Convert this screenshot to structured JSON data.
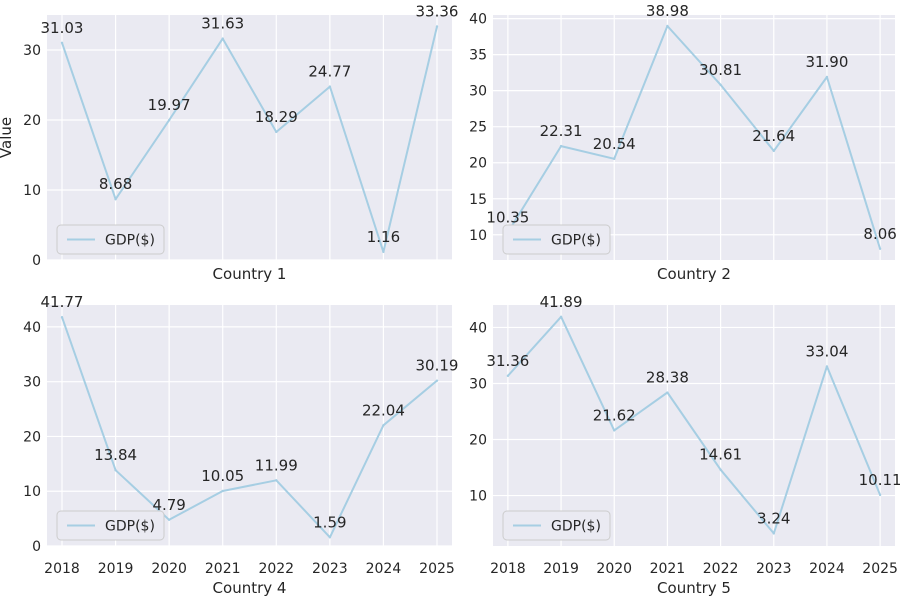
{
  "chart_data": [
    {
      "type": "line",
      "xlabel": "Country 1",
      "ylabel": "Value",
      "x": [
        2018,
        2019,
        2020,
        2021,
        2022,
        2023,
        2024,
        2025
      ],
      "show_xticklabels": false,
      "ylim": [
        0,
        35
      ],
      "yticks": [
        0,
        10,
        20,
        30
      ],
      "grid": true,
      "legend": "lower-left",
      "series": [
        {
          "name": "GDP($)",
          "values": [
            31.03,
            8.68,
            19.97,
            31.63,
            18.29,
            24.77,
            1.16,
            33.36
          ],
          "labels": [
            "31.03",
            "8.68",
            "19.97",
            "31.63",
            "18.29",
            "24.77",
            "1.16",
            "33.36"
          ],
          "color": "#a6cee3"
        }
      ]
    },
    {
      "type": "line",
      "xlabel": "Country 2",
      "ylabel": "",
      "x": [
        2018,
        2019,
        2020,
        2021,
        2022,
        2023,
        2024,
        2025
      ],
      "show_xticklabels": false,
      "ylim": [
        6.5,
        40.5
      ],
      "yticks": [
        10,
        15,
        20,
        25,
        30,
        35,
        40
      ],
      "grid": true,
      "legend": "lower-left",
      "series": [
        {
          "name": "GDP($)",
          "values": [
            10.35,
            22.31,
            20.54,
            38.98,
            30.81,
            21.64,
            31.9,
            8.06
          ],
          "labels": [
            "10.35",
            "22.31",
            "20.54",
            "38.98",
            "30.81",
            "21.64",
            "31.90",
            "8.06"
          ],
          "color": "#a6cee3"
        }
      ]
    },
    {
      "type": "line",
      "xlabel": "Country 4",
      "ylabel": "",
      "x": [
        2018,
        2019,
        2020,
        2021,
        2022,
        2023,
        2024,
        2025
      ],
      "show_xticklabels": true,
      "ylim": [
        0,
        44
      ],
      "yticks": [
        0,
        10,
        20,
        30,
        40
      ],
      "grid": true,
      "legend": "lower-left",
      "series": [
        {
          "name": "GDP($)",
          "values": [
            41.77,
            13.84,
            4.79,
            10.05,
            11.99,
            1.59,
            22.04,
            30.19
          ],
          "labels": [
            "41.77",
            "13.84",
            "4.79",
            "10.05",
            "11.99",
            "1.59",
            "22.04",
            "30.19"
          ],
          "color": "#a6cee3"
        }
      ]
    },
    {
      "type": "line",
      "xlabel": "Country 5",
      "ylabel": "",
      "x": [
        2018,
        2019,
        2020,
        2021,
        2022,
        2023,
        2024,
        2025
      ],
      "show_xticklabels": true,
      "ylim": [
        1,
        44
      ],
      "yticks": [
        10,
        20,
        30,
        40
      ],
      "grid": true,
      "legend": "lower-left",
      "series": [
        {
          "name": "GDP($)",
          "values": [
            31.36,
            41.89,
            21.62,
            28.38,
            14.61,
            3.24,
            33.04,
            10.11
          ],
          "labels": [
            "31.36",
            "41.89",
            "21.62",
            "28.38",
            "14.61",
            "3.24",
            "33.04",
            "10.11"
          ],
          "color": "#a6cee3"
        }
      ]
    }
  ]
}
